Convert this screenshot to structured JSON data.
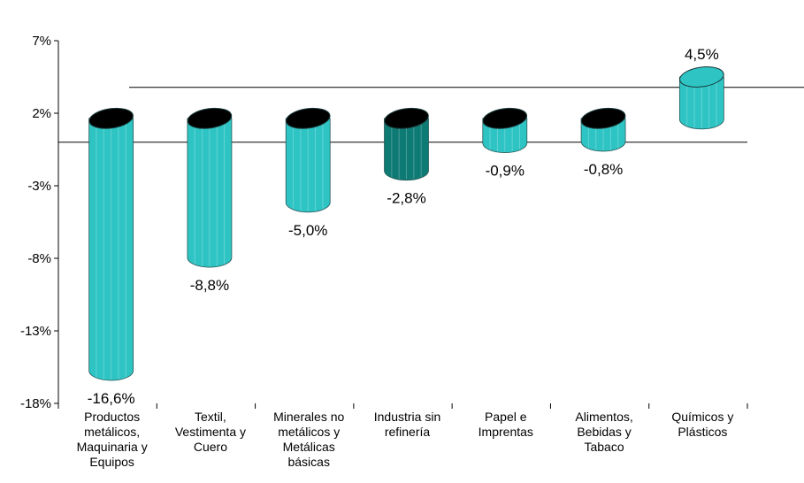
{
  "colors": {
    "bar": "#2ec4c4",
    "bar_highlight": "#0e7a74",
    "cap": "#000000",
    "axis": "#000000"
  },
  "chart_data": {
    "type": "bar",
    "style": "3d-cylinder",
    "categories": [
      "Productos metálicos, Maquinaria y Equipos",
      "Textil, Vestimenta y Cuero",
      "Minerales no metálicos y Metálicas básicas",
      "Industria sin refinería",
      "Papel e Imprentas",
      "Alimentos, Bebidas y Tabaco",
      "Químicos y Plásticos"
    ],
    "category_lines": [
      [
        "Productos",
        "metálicos,",
        "Maquinaria y",
        "Equipos"
      ],
      [
        "Textil,",
        "Vestimenta y",
        "Cuero"
      ],
      [
        "Minerales no",
        "metálicos y",
        "Metálicas",
        "básicas"
      ],
      [
        "Industria sin",
        "refinería"
      ],
      [
        "Papel e",
        "Imprentas"
      ],
      [
        "Alimentos,",
        "Bebidas y",
        "Tabaco"
      ],
      [
        "Químicos y",
        "Plásticos"
      ]
    ],
    "values": [
      -16.6,
      -8.8,
      -5.0,
      -2.8,
      -0.9,
      -0.8,
      4.5
    ],
    "value_labels": [
      "-16,6%",
      "-8,8%",
      "-5,0%",
      "-2,8%",
      "-0,9%",
      "-0,8%",
      "4,5%"
    ],
    "highlight_index": 3,
    "ylim": [
      -18,
      7
    ],
    "yticks": [
      7,
      2,
      -3,
      -8,
      -13,
      -18
    ],
    "ytick_labels": [
      "7%",
      "2%",
      "-3%",
      "-8%",
      "-13%",
      "-18%"
    ],
    "title": "",
    "xlabel": "",
    "ylabel": "",
    "grid": false,
    "legend": "none"
  }
}
